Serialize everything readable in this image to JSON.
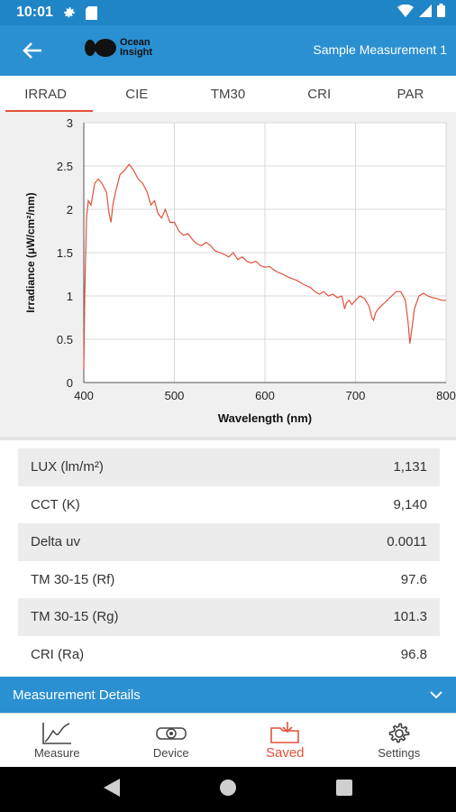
{
  "status_bar": {
    "time": "10:01"
  },
  "app_bar": {
    "logo_line1": "Ocean",
    "logo_line2": "Insight",
    "title": "Sample Measurement 1"
  },
  "tabs": [
    {
      "label": "IRRAD",
      "active": true
    },
    {
      "label": "CIE",
      "active": false
    },
    {
      "label": "TM30",
      "active": false
    },
    {
      "label": "CRI",
      "active": false
    },
    {
      "label": "PAR",
      "active": false
    }
  ],
  "chart_data": {
    "type": "line",
    "xlabel": "Wavelength (nm)",
    "ylabel": "Irradiance (μW/cm²/nm)",
    "xlim": [
      400,
      800
    ],
    "ylim": [
      0,
      3
    ],
    "x_ticks": [
      400,
      500,
      600,
      700,
      800
    ],
    "y_ticks": [
      0,
      0.5,
      1,
      1.5,
      2,
      2.5,
      3
    ],
    "x_tick_labels": [
      "400",
      "500",
      "600",
      "700",
      "800"
    ],
    "y_tick_labels": [
      "0",
      "0.5",
      "1",
      "1.5",
      "2",
      "2.5",
      "3"
    ],
    "grid": true,
    "line_color": "#e2513a",
    "x": [
      400,
      401,
      403,
      405,
      408,
      412,
      416,
      420,
      425,
      428,
      430,
      432,
      435,
      440,
      445,
      450,
      455,
      460,
      465,
      470,
      474,
      478,
      482,
      486,
      490,
      495,
      500,
      505,
      510,
      515,
      520,
      525,
      530,
      535,
      540,
      545,
      550,
      555,
      560,
      565,
      570,
      575,
      580,
      585,
      590,
      595,
      600,
      605,
      610,
      615,
      620,
      625,
      630,
      635,
      640,
      645,
      650,
      655,
      660,
      665,
      670,
      675,
      680,
      685,
      688,
      690,
      693,
      696,
      700,
      705,
      710,
      715,
      718,
      720,
      722,
      725,
      730,
      735,
      740,
      745,
      750,
      755,
      758,
      760,
      762,
      765,
      770,
      775,
      780,
      785,
      790,
      795,
      800
    ],
    "y": [
      0.15,
      1.0,
      1.9,
      2.1,
      2.05,
      2.3,
      2.35,
      2.3,
      2.2,
      1.95,
      1.85,
      2.05,
      2.2,
      2.4,
      2.45,
      2.52,
      2.45,
      2.35,
      2.3,
      2.2,
      2.05,
      2.1,
      1.95,
      1.9,
      2.0,
      1.85,
      1.85,
      1.75,
      1.7,
      1.72,
      1.65,
      1.6,
      1.58,
      1.62,
      1.58,
      1.52,
      1.5,
      1.48,
      1.45,
      1.5,
      1.42,
      1.45,
      1.4,
      1.38,
      1.4,
      1.35,
      1.33,
      1.34,
      1.3,
      1.27,
      1.25,
      1.22,
      1.2,
      1.18,
      1.15,
      1.12,
      1.1,
      1.05,
      1.02,
      1.05,
      1.0,
      1.02,
      0.98,
      1.0,
      0.85,
      0.92,
      0.95,
      0.9,
      0.95,
      1.0,
      0.97,
      0.88,
      0.75,
      0.72,
      0.8,
      0.85,
      0.9,
      0.95,
      1.0,
      1.05,
      1.05,
      0.95,
      0.7,
      0.45,
      0.6,
      0.85,
      1.0,
      1.03,
      1.0,
      0.98,
      0.97,
      0.95,
      0.95
    ]
  },
  "metrics": [
    {
      "label": "LUX (lm/m²)",
      "value": "1,131"
    },
    {
      "label": "CCT (K)",
      "value": "9,140"
    },
    {
      "label": "Delta uv",
      "value": "0.0011"
    },
    {
      "label": "TM 30-15 (Rf)",
      "value": "97.6"
    },
    {
      "label": "TM 30-15 (Rg)",
      "value": "101.3"
    },
    {
      "label": "CRI (Ra)",
      "value": "96.8"
    }
  ],
  "details_bar": {
    "label": "Measurement Details"
  },
  "bottom_nav": [
    {
      "label": "Measure",
      "icon": "chart-line-icon"
    },
    {
      "label": "Device",
      "icon": "device-icon"
    },
    {
      "label": "Saved",
      "icon": "folder-download-icon",
      "active": true
    },
    {
      "label": "Settings",
      "icon": "gear-icon"
    }
  ],
  "colors": {
    "primary": "#2a90d2",
    "status_bar": "#1f85c7",
    "accent": "#e2513a"
  }
}
